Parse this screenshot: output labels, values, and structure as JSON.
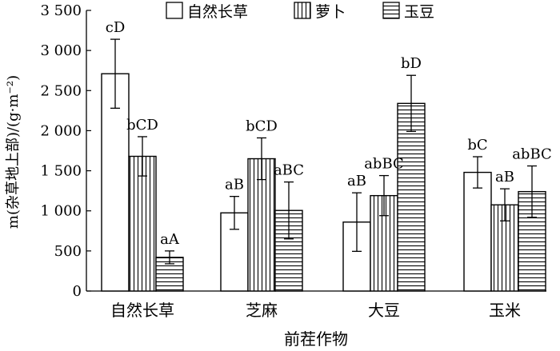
{
  "chart_data": {
    "type": "bar",
    "title": "",
    "xlabel": "前茬作物",
    "ylabel": "m(杂草地上部)/(g·m⁻²)",
    "ylim": [
      0,
      3500
    ],
    "yticks": [
      0,
      500,
      1000,
      1500,
      2000,
      2500,
      3000,
      3500
    ],
    "ytick_labels": [
      "0",
      "500",
      "1 000",
      "1 500",
      "2 000",
      "2 500",
      "3 000",
      "3 500"
    ],
    "categories": [
      "自然长草",
      "芝麻",
      "大豆",
      "玉米"
    ],
    "legend_position": "top",
    "grid": false,
    "series": [
      {
        "name": "自然长草",
        "pattern": "none",
        "values": [
          2710,
          975,
          860,
          1480
        ],
        "errors": [
          430,
          205,
          365,
          195
        ],
        "labels": [
          "cD",
          "aB",
          "aB",
          "bC"
        ]
      },
      {
        "name": "萝卜",
        "pattern": "vertical",
        "values": [
          1680,
          1650,
          1190,
          1075
        ],
        "errors": [
          245,
          260,
          250,
          200
        ],
        "labels": [
          "bCD",
          "bCD",
          "abBC",
          "aB"
        ]
      },
      {
        "name": "玉豆",
        "pattern": "horizontal",
        "values": [
          420,
          1005,
          2340,
          1240
        ],
        "errors": [
          80,
          355,
          350,
          320
        ],
        "labels": [
          "aA",
          "aBC",
          "bD",
          "abBC"
        ]
      }
    ]
  }
}
